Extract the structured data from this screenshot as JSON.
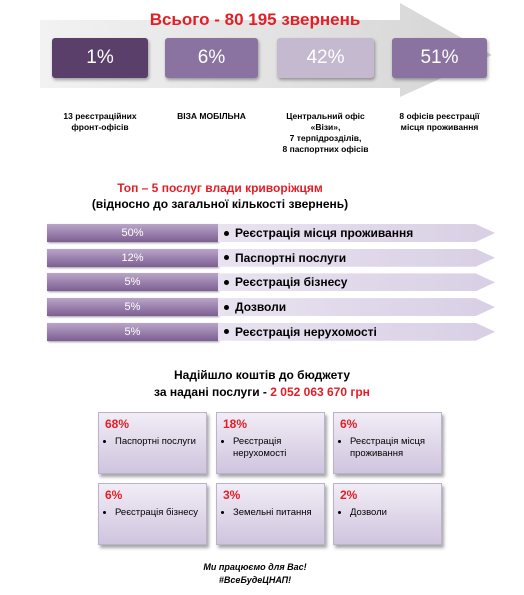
{
  "header": {
    "title": "Всього - 80  195 звернень"
  },
  "offices": [
    {
      "percent": "1%",
      "label": [
        "13 реєстраційних",
        "фронт-офісів"
      ]
    },
    {
      "percent": "6%",
      "label": [
        "ВІЗА МОБІЛЬНА"
      ]
    },
    {
      "percent": "42%",
      "label": [
        "Центральний офіс",
        "«Візи»,",
        "7 терпідрозділів,",
        "8 паспортних офісів"
      ]
    },
    {
      "percent": "51%",
      "label": [
        "8 офісів реєстрації",
        "місця проживання"
      ]
    }
  ],
  "top_services": {
    "title": "Топ – 5 послуг влади криворіжцям",
    "subtitle": "(відносно до загальної кількості звернень)",
    "rows": [
      {
        "percent": "50%",
        "label": "Реєстрація місця проживання"
      },
      {
        "percent": "12%",
        "label": "Паспортні послуги"
      },
      {
        "percent": "5%",
        "label": "Реєстрація бізнесу"
      },
      {
        "percent": "5%",
        "label": "Дозволи"
      },
      {
        "percent": "5%",
        "label": "Реєстрація нерухомості"
      }
    ]
  },
  "budget": {
    "title": "Надійшло коштів до бюджету",
    "subtitle": "за надані послуги -",
    "amount": "2  052 063  670 грн",
    "items": [
      {
        "percent": "68%",
        "label": "Паспортні послуги"
      },
      {
        "percent": "18%",
        "label": "Реєстрація нерухомості"
      },
      {
        "percent": "6%",
        "label": "Реєстрація місця проживання"
      },
      {
        "percent": "6%",
        "label": "Реєстрація бізнесу"
      },
      {
        "percent": "3%",
        "label": "Земельні питання"
      },
      {
        "percent": "2%",
        "label": "Дозволи"
      }
    ]
  },
  "footer": [
    "Ми працюємо для Вас!",
    "#ВсеБудеЦНАП!"
  ]
}
